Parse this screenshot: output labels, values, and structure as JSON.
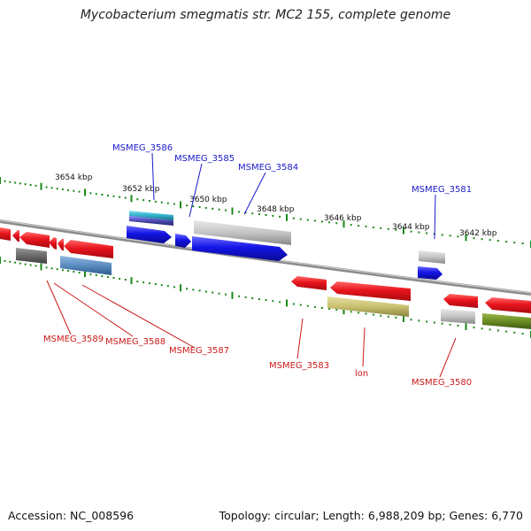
{
  "title": "Mycobacterium smegmatis str. MC2 155, complete genome",
  "accession": "Accession: NC_008596",
  "summary": "Topology: circular; Length: 6,988,209 bp; Genes: 6,770",
  "colors": {
    "backbone": "#8c8c8c",
    "tick": "#1a8a1a",
    "plus_label": "#1a1acc",
    "minus_label": "#cc1a1a",
    "red": "#e8141c",
    "blue": "#1414e6",
    "gray": "#c4c4c4",
    "darkgray": "#6a6a6a",
    "steelblue": "#5a8cc0",
    "khaki": "#c8c070",
    "olive": "#6a8c22",
    "teal": "#30b0c8"
  },
  "kbp_labels": [
    "3654 kbp",
    "3652 kbp",
    "3650 kbp",
    "3648 kbp",
    "3646 kbp",
    "3644 kbp",
    "3642 kbp"
  ],
  "gene_labels_plus": [
    "MSMEG_3586",
    "MSMEG_3585",
    "MSMEG_3584",
    "MSMEG_3581"
  ],
  "gene_labels_minus": [
    "MSMEG_3589",
    "MSMEG_3588",
    "MSMEG_3587",
    "MSMEG_3583",
    "lon",
    "MSMEG_3580"
  ]
}
